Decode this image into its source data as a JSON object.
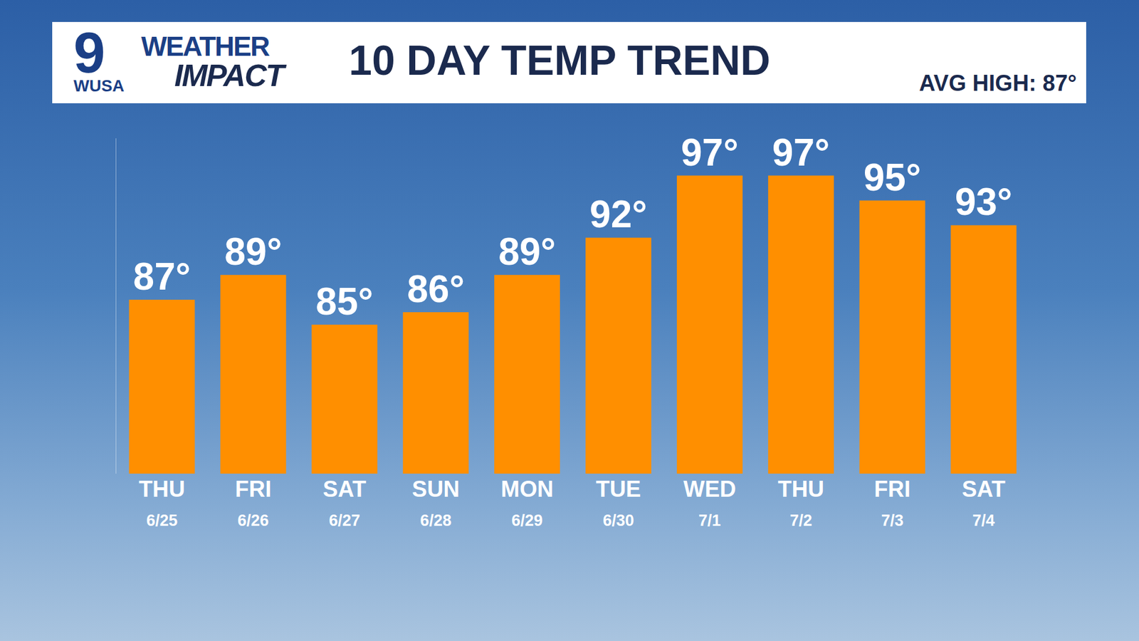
{
  "chart_data": {
    "type": "bar",
    "title": "10 DAY TEMP TREND",
    "annotations": [
      "9",
      "WUSA",
      "WEATHER",
      "IMPACT",
      "AVG HIGH: 87°"
    ],
    "categories": [
      "THU 6/25",
      "FRI 6/26",
      "SAT 6/27",
      "SUN 6/28",
      "MON 6/29",
      "TUE 6/30",
      "WED 7/1",
      "THU 7/2",
      "FRI 7/3",
      "SAT 7/4"
    ],
    "values": [
      87,
      89,
      85,
      86,
      89,
      92,
      97,
      97,
      95,
      93
    ],
    "value_labels": [
      "87°",
      "89°",
      "85°",
      "86°",
      "89°",
      "92°",
      "97°",
      "97°",
      "95°",
      "93°"
    ],
    "color": "#ff8f00",
    "ylim": [
      73,
      100
    ],
    "yticks": [],
    "grid": false,
    "data_labels": true,
    "tick_labels": "x"
  }
}
